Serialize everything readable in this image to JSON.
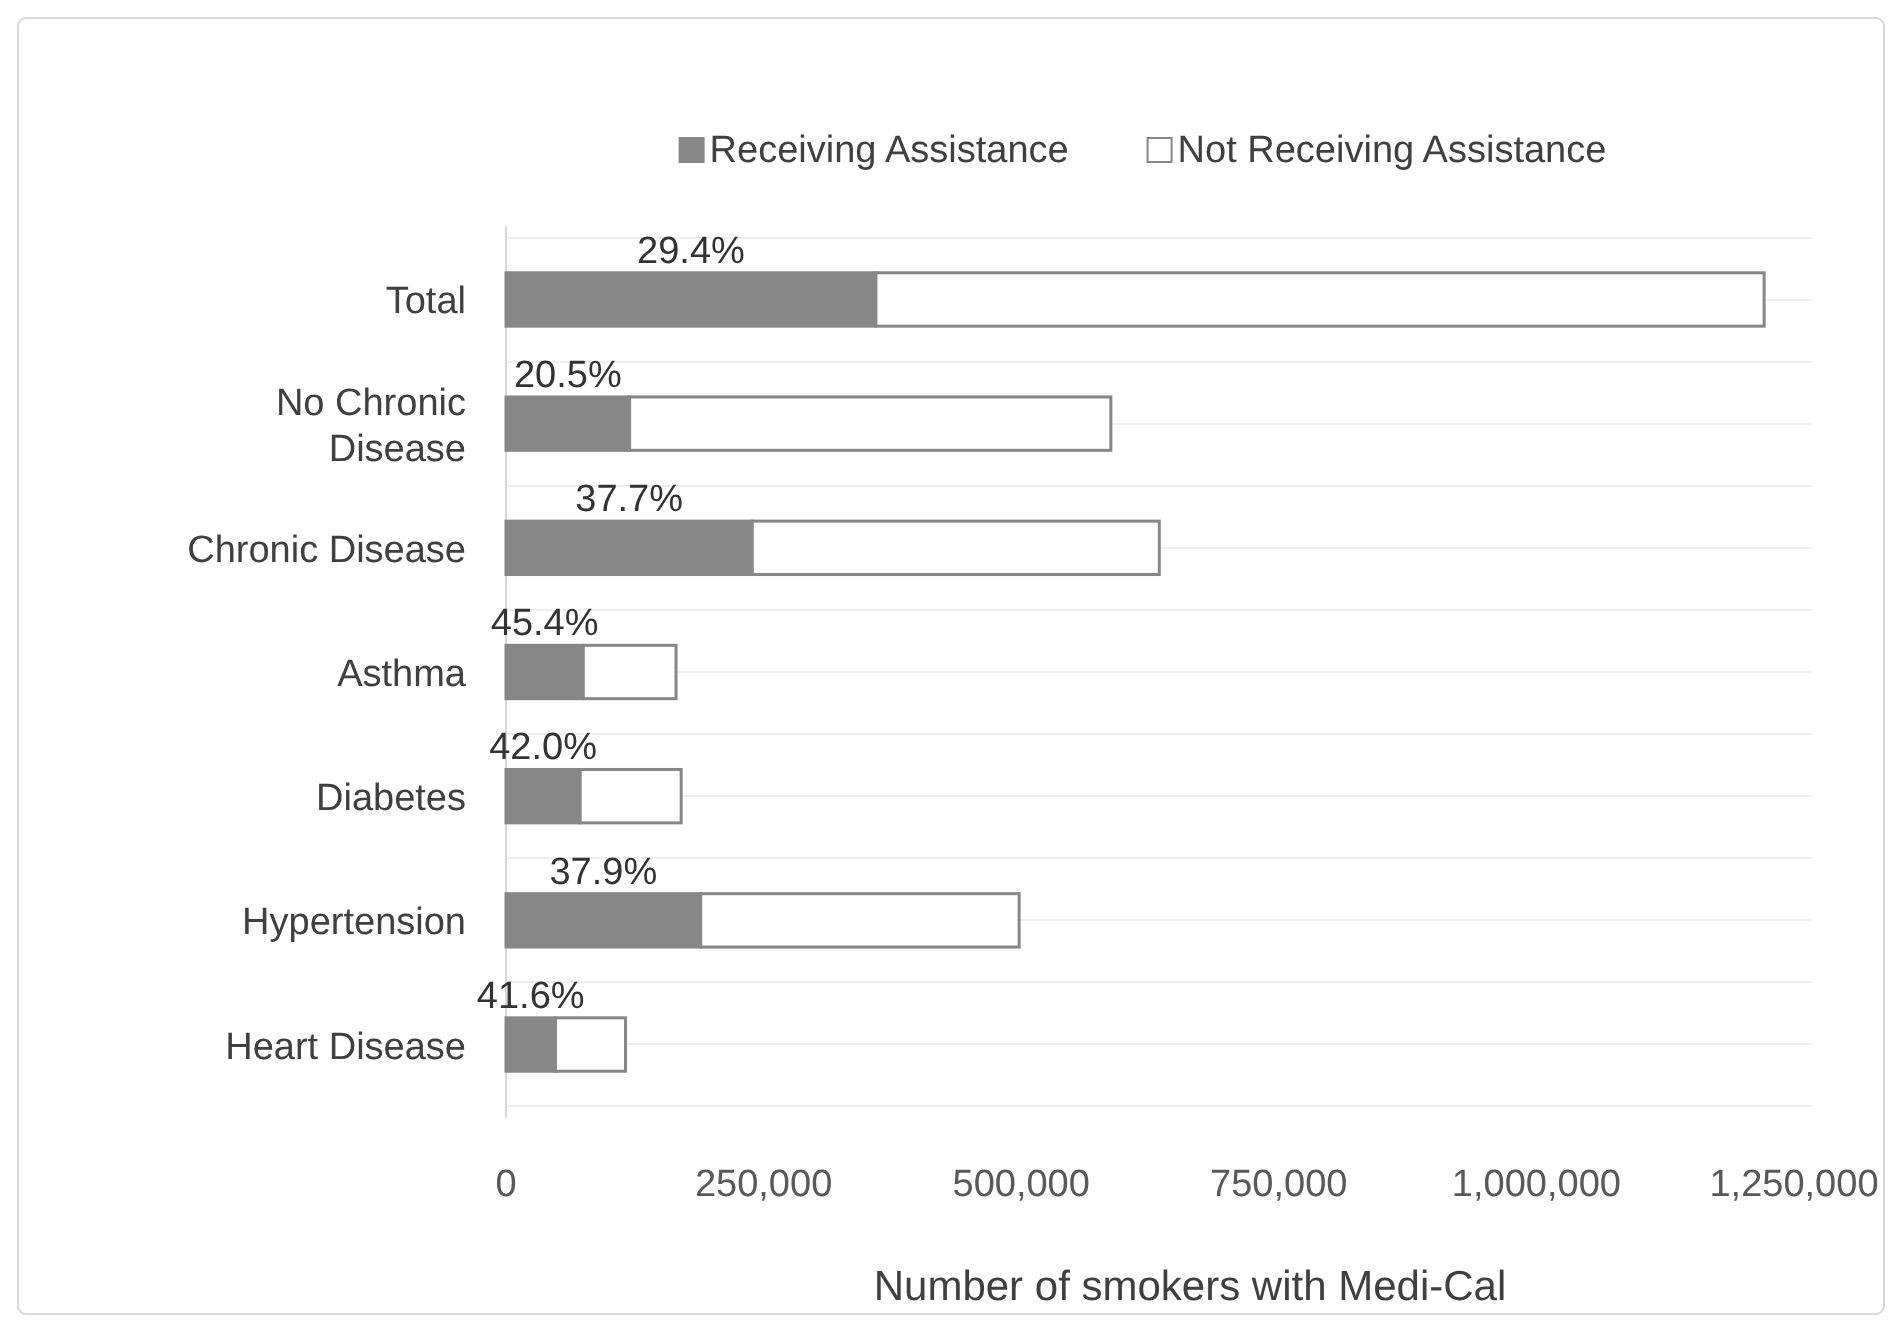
{
  "chart_data": {
    "type": "bar",
    "orientation": "horizontal",
    "stacked": true,
    "xlabel": "Number of smokers with Medi-Cal",
    "categories": [
      "Total",
      "No Chronic Disease",
      "Chronic Disease",
      "Asthma",
      "Diabetes",
      "Hypertension",
      "Heart Disease"
    ],
    "series": [
      {
        "name": "Receiving Assistance",
        "color": "#878787",
        "values": [
          359000,
          120000,
          239000,
          75000,
          72000,
          189000,
          48000
        ]
      },
      {
        "name": "Not Receiving Assistance",
        "color": "#ffffff",
        "values": [
          862000,
          467000,
          395000,
          90000,
          98000,
          309000,
          68000
        ]
      }
    ],
    "xlim": [
      0,
      1250000
    ],
    "xticks": [
      {
        "value": 0,
        "label": "0"
      },
      {
        "value": 250000,
        "label": "250,000"
      },
      {
        "value": 500000,
        "label": "500,000"
      },
      {
        "value": 750000,
        "label": "750,000"
      },
      {
        "value": 1000000,
        "label": "1,000,000"
      },
      {
        "value": 1250000,
        "label": "1,250,000"
      }
    ],
    "grid": "y",
    "legend": "top",
    "annotations": [
      "29.4%",
      "20.5%",
      "37.7%",
      "45.4%",
      "42.0%",
      "37.9%",
      "41.6%"
    ]
  }
}
